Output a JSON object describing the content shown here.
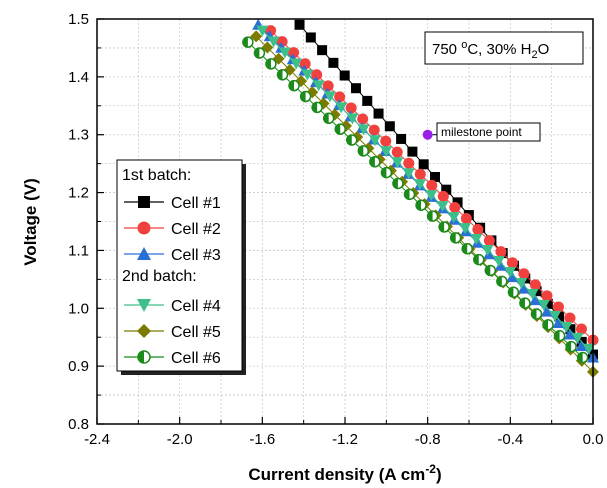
{
  "chart_data": {
    "type": "scatter",
    "xlabel": "Current density (A cm",
    "xlabel_sup": "-2",
    "xlabel_end": ")",
    "ylabel": "Voltage (V)",
    "xlim": [
      -2.4,
      0.0
    ],
    "ylim": [
      0.8,
      1.5
    ],
    "x_ticks": [
      -2.4,
      -2.0,
      -1.6,
      -1.2,
      -0.8,
      -0.4,
      0.0
    ],
    "x_tick_labels": [
      "-2.4",
      "-2.0",
      "-1.6",
      "-1.2",
      "-0.8",
      "-0.4",
      "0.0"
    ],
    "y_ticks": [
      0.8,
      0.9,
      1.0,
      1.1,
      1.2,
      1.3,
      1.4,
      1.5
    ],
    "y_tick_labels": [
      "0.8",
      "0.9",
      "1.0",
      "1.1",
      "1.2",
      "1.3",
      "1.4",
      "1.5"
    ],
    "grid": true,
    "condition_box": {
      "main": "750 ",
      "sup": "o",
      "rest": "C, 30% H",
      "sub": "2",
      "end": "O"
    },
    "milestone": {
      "x": -0.8,
      "y": 1.3,
      "label": "milestone point",
      "color": "#9b1fe8"
    },
    "legend": {
      "group1": "1st batch:",
      "group2": "2nd batch:"
    },
    "series": [
      {
        "name": "Cell #1",
        "marker": "square",
        "color": "#000000",
        "x0": -1.42,
        "y0": 1.49,
        "x1": 0.0,
        "y1": 0.92,
        "step": 0.055
      },
      {
        "name": "Cell #2",
        "marker": "circle",
        "color": "#f0413e",
        "x0": -1.56,
        "y0": 1.48,
        "x1": 0.0,
        "y1": 0.945,
        "step": 0.055
      },
      {
        "name": "Cell #3",
        "marker": "triangle-up",
        "color": "#2a6fd6",
        "x0": -1.62,
        "y0": 1.49,
        "x1": 0.0,
        "y1": 0.915,
        "step": 0.055
      },
      {
        "name": "Cell #4",
        "marker": "triangle-down",
        "color": "#3dbf8a",
        "x0": -1.6,
        "y0": 1.48,
        "x1": -0.02,
        "y1": 0.93,
        "step": 0.055
      },
      {
        "name": "Cell #5",
        "marker": "diamond",
        "color": "#7b7b00",
        "x0": -1.63,
        "y0": 1.47,
        "x1": 0.0,
        "y1": 0.89,
        "step": 0.055
      },
      {
        "name": "Cell #6",
        "marker": "half-circle",
        "color": "#1a8a1a",
        "x0": -1.67,
        "y0": 1.46,
        "x1": -0.05,
        "y1": 0.915,
        "step": 0.055
      }
    ]
  }
}
